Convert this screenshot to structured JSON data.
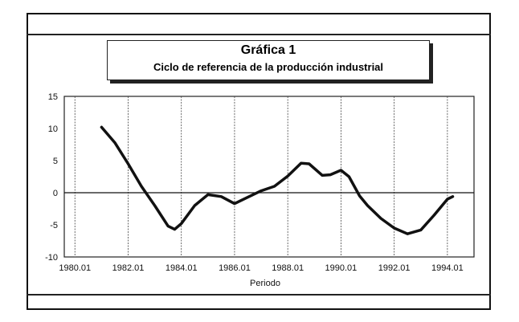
{
  "chart_data": {
    "type": "line",
    "title": "Gráfica 1",
    "subtitle": "Ciclo de referencia de la producción industrial",
    "xlabel": "Periodo",
    "ylabel": "",
    "xlim": [
      1979.6,
      1995.0
    ],
    "ylim": [
      -10,
      15
    ],
    "x_ticks": [
      1980,
      1982,
      1984,
      1986,
      1988,
      1990,
      1992,
      1994
    ],
    "x_tick_labels": [
      "1980.01",
      "1982.01",
      "1984.01",
      "1986.01",
      "1988.01",
      "1990.01",
      "1992.01",
      "1994.01"
    ],
    "y_ticks": [
      15,
      10,
      5,
      0,
      -5,
      -10
    ],
    "y_tick_labels": [
      "15",
      "10",
      "5",
      "0",
      "-5",
      "-10"
    ],
    "grid": "vertical dashed",
    "line_color": "#111111",
    "series": [
      {
        "x": [
          1981.0,
          1981.5,
          1982.0,
          1982.5,
          1983.0,
          1983.5,
          1983.75,
          1984.0,
          1984.5,
          1985.0,
          1985.5,
          1986.0,
          1986.5,
          1987.0,
          1987.5,
          1988.0,
          1988.5,
          1988.8,
          1989.3,
          1989.6,
          1990.0,
          1990.3,
          1990.7,
          1991.0,
          1991.5,
          1992.0,
          1992.5,
          1993.0,
          1993.5,
          1994.0,
          1994.2
        ],
        "y": [
          10.2,
          7.8,
          4.5,
          1.0,
          -2.0,
          -5.2,
          -5.7,
          -4.8,
          -2.0,
          -0.3,
          -0.6,
          -1.7,
          -0.7,
          0.3,
          1.0,
          2.6,
          4.6,
          4.5,
          2.7,
          2.8,
          3.5,
          2.5,
          -0.5,
          -2.0,
          -4.0,
          -5.5,
          -6.4,
          -5.8,
          -3.5,
          -1.0,
          -0.6
        ]
      }
    ]
  }
}
